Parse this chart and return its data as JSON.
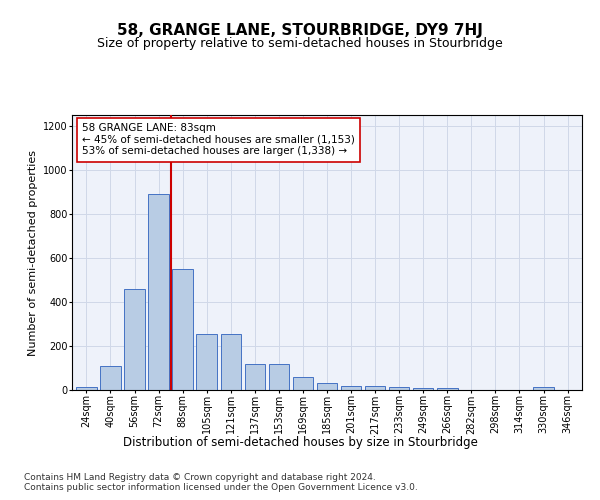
{
  "title": "58, GRANGE LANE, STOURBRIDGE, DY9 7HJ",
  "subtitle": "Size of property relative to semi-detached houses in Stourbridge",
  "xlabel": "Distribution of semi-detached houses by size in Stourbridge",
  "ylabel": "Number of semi-detached properties",
  "categories": [
    "24sqm",
    "40sqm",
    "56sqm",
    "72sqm",
    "88sqm",
    "105sqm",
    "121sqm",
    "137sqm",
    "153sqm",
    "169sqm",
    "185sqm",
    "201sqm",
    "217sqm",
    "233sqm",
    "249sqm",
    "266sqm",
    "282sqm",
    "298sqm",
    "314sqm",
    "330sqm",
    "346sqm"
  ],
  "values": [
    15,
    110,
    460,
    890,
    550,
    255,
    255,
    120,
    120,
    60,
    30,
    20,
    20,
    15,
    8,
    10,
    2,
    0,
    0,
    15,
    0
  ],
  "bar_color": "#b8cce4",
  "bar_edge_color": "#4472c4",
  "vline_color": "#cc0000",
  "annotation_text": "58 GRANGE LANE: 83sqm\n← 45% of semi-detached houses are smaller (1,153)\n53% of semi-detached houses are larger (1,338) →",
  "annotation_box_color": "#ffffff",
  "annotation_box_edge": "#cc0000",
  "ylim": [
    0,
    1250
  ],
  "yticks": [
    0,
    200,
    400,
    600,
    800,
    1000,
    1200
  ],
  "grid_color": "#d0d8e8",
  "background_color": "#eef2fa",
  "footer_line1": "Contains HM Land Registry data © Crown copyright and database right 2024.",
  "footer_line2": "Contains public sector information licensed under the Open Government Licence v3.0.",
  "title_fontsize": 11,
  "subtitle_fontsize": 9,
  "xlabel_fontsize": 8.5,
  "ylabel_fontsize": 8,
  "tick_fontsize": 7,
  "footer_fontsize": 6.5,
  "annotation_fontsize": 7.5
}
